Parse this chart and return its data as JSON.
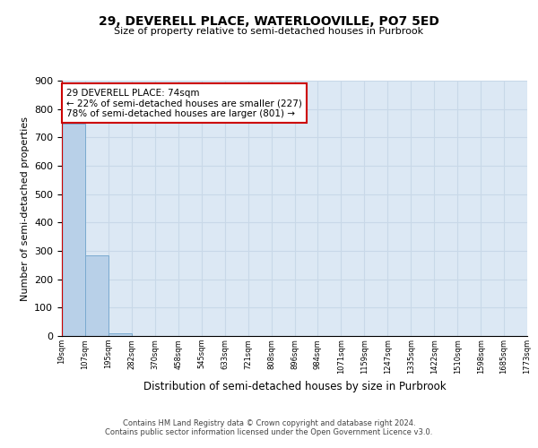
{
  "title": "29, DEVERELL PLACE, WATERLOOVILLE, PO7 5ED",
  "subtitle": "Size of property relative to semi-detached houses in Purbrook",
  "xlabel": "Distribution of semi-detached houses by size in Purbrook",
  "ylabel": "Number of semi-detached properties",
  "bins": [
    "19sqm",
    "107sqm",
    "195sqm",
    "282sqm",
    "370sqm",
    "458sqm",
    "545sqm",
    "633sqm",
    "721sqm",
    "808sqm",
    "896sqm",
    "984sqm",
    "1071sqm",
    "1159sqm",
    "1247sqm",
    "1335sqm",
    "1422sqm",
    "1510sqm",
    "1598sqm",
    "1685sqm",
    "1773sqm"
  ],
  "bar_heights": [
    750,
    285,
    8,
    0,
    0,
    0,
    0,
    0,
    0,
    0,
    0,
    0,
    0,
    0,
    0,
    0,
    0,
    0,
    0,
    0
  ],
  "bar_color": "#b8d0e8",
  "bar_edgecolor": "#7aaad0",
  "property_label": "29 DEVERELL PLACE: 74sqm",
  "pct_smaller": 22,
  "pct_larger": 78,
  "count_smaller": 227,
  "count_larger": 801,
  "annotation_box_color": "#cc0000",
  "red_line_color": "#cc0000",
  "grid_color": "#c8d8e8",
  "background_color": "#dce8f4",
  "ylim": [
    0,
    900
  ],
  "yticks": [
    0,
    100,
    200,
    300,
    400,
    500,
    600,
    700,
    800,
    900
  ],
  "footer_line1": "Contains HM Land Registry data © Crown copyright and database right 2024.",
  "footer_line2": "Contains public sector information licensed under the Open Government Licence v3.0."
}
